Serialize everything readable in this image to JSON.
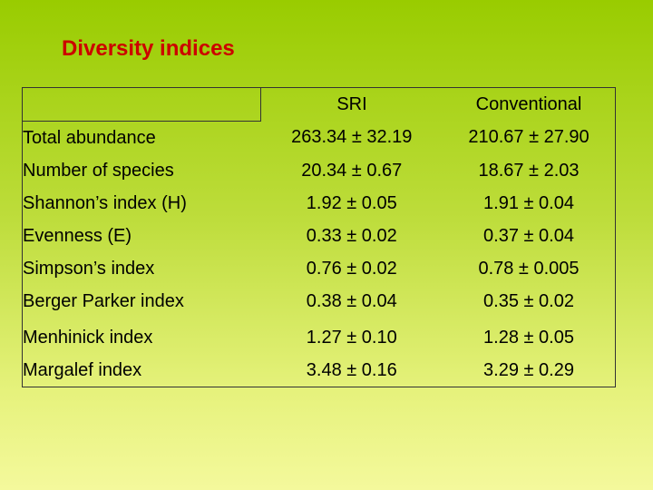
{
  "title": "Diversity indices",
  "columns": [
    "",
    "SRI",
    "Conventional"
  ],
  "rows": [
    {
      "label": "Total abundance",
      "sri": "263.34 ± 32.19",
      "conventional": "210.67 ± 27.90"
    },
    {
      "label": "Number of species",
      "sri": "20.34 ± 0.67",
      "conventional": "18.67 ± 2.03"
    },
    {
      "label": "Shannon’s index (H)",
      "sri": "1.92 ± 0.05",
      "conventional": "1.91 ± 0.04"
    },
    {
      "label": "Evenness (E)",
      "sri": "0.33 ± 0.02",
      "conventional": "0.37 ± 0.04"
    },
    {
      "label": "Simpson’s index",
      "sri": "0.76 ± 0.02",
      "conventional": "0.78 ± 0.005"
    },
    {
      "label": "Berger Parker index",
      "sri": "0.38 ± 0.04",
      "conventional": "0.35 ± 0.02"
    },
    {
      "label": "Menhinick index",
      "sri": "1.27 ± 0.10",
      "conventional": "1.28 ± 0.05"
    },
    {
      "label": "Margalef index",
      "sri": "3.48 ± 0.16",
      "conventional": "3.29 ± 0.29"
    }
  ]
}
